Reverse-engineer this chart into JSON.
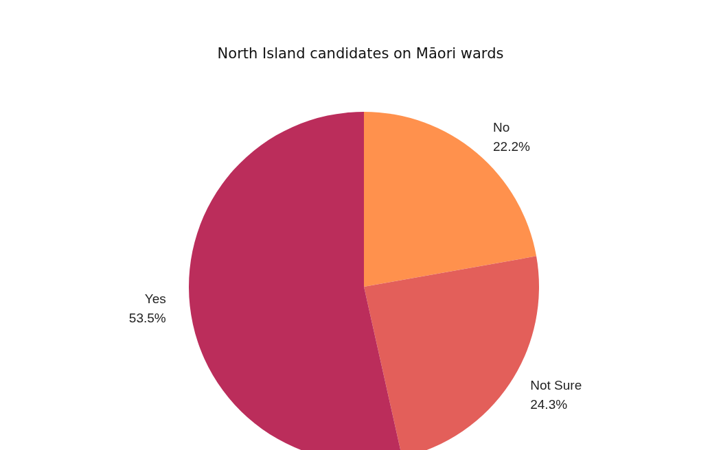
{
  "chart_data": {
    "type": "pie",
    "title": "North Island candidates on Māori wards",
    "categories": [
      "No",
      "Not Sure",
      "Yes"
    ],
    "values": [
      22.2,
      24.3,
      53.5
    ],
    "colors": [
      "#ff914d",
      "#e35f5a",
      "#bb2d5b"
    ],
    "value_labels": [
      "22.2%",
      "24.3%",
      "53.5%"
    ]
  }
}
